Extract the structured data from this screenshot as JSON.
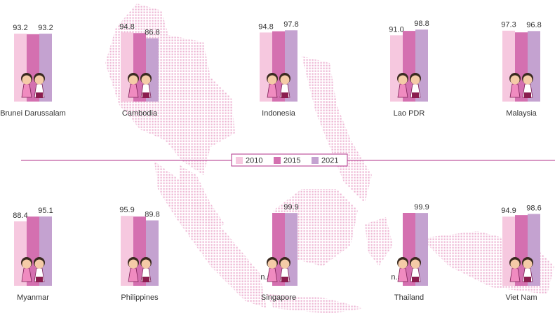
{
  "chart_data": {
    "type": "grouped-bar",
    "categories": [
      "Brunei Darussalam",
      "Cambodia",
      "Indonesia",
      "Lao PDR",
      "Malaysia",
      "Myanmar",
      "Philippines",
      "Singapore",
      "Thailand",
      "Viet Nam"
    ],
    "series": [
      {
        "name": "2010",
        "color": "#f6c8df",
        "values": [
          93.2,
          94.8,
          94.8,
          91.0,
          97.3,
          88.4,
          95.9,
          null,
          null,
          94.9
        ],
        "value_labels": [
          "93.2",
          "94.8",
          "94.8",
          "91.0",
          "97.3",
          "88.4",
          "95.9",
          "n.a",
          "n.a",
          "94.9"
        ]
      },
      {
        "name": "2015",
        "color": "#d470b0",
        "values": [
          92.5,
          94,
          96.5,
          97,
          95,
          95,
          95,
          100,
          100,
          97
        ]
      },
      {
        "name": "2021",
        "color": "#c4a2d0",
        "values": [
          93.2,
          86.8,
          97.8,
          98.8,
          96.8,
          95.1,
          89.8,
          99.9,
          99.9,
          98.6
        ],
        "value_labels": [
          "93.2",
          "86.8",
          "97.8",
          "98.8",
          "96.8",
          "95.1",
          "89.8",
          "99.9",
          "99.9",
          "98.6"
        ]
      }
    ]
  }
}
